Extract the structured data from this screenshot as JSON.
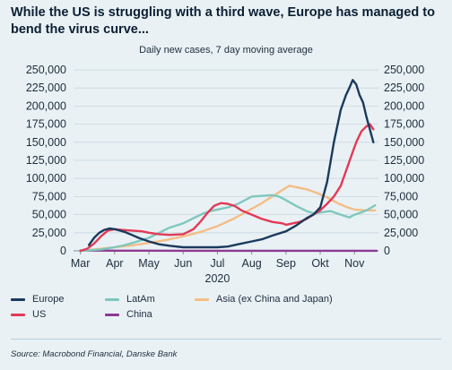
{
  "title": "While the US is struggling with a third wave, Europe has managed to bend the virus curve...",
  "subtitle": "Daily new cases, 7 day moving average",
  "source": "Source: Macrobond Financial, Danske Bank",
  "chart_data": {
    "type": "line",
    "x_unit": "month",
    "x_ticks": [
      "Mar",
      "Apr",
      "May",
      "Jun",
      "Jul",
      "Aug",
      "Sep",
      "Okt",
      "Nov"
    ],
    "x_tick_positions": [
      3.0,
      4.0,
      5.0,
      6.0,
      7.0,
      8.0,
      9.0,
      10.0,
      11.0
    ],
    "xlabel": "2020",
    "xlim": [
      2.8,
      11.7
    ],
    "ylim": [
      0,
      250000
    ],
    "y_ticks": [
      "0",
      "25,000",
      "50,000",
      "75,000",
      "100,000",
      "125,000",
      "150,000",
      "175,000",
      "200,000",
      "225,000",
      "250,000"
    ],
    "y_tick_values": [
      0,
      25000,
      50000,
      75000,
      100000,
      125000,
      150000,
      175000,
      200000,
      225000,
      250000
    ],
    "legend_placement": "bottom",
    "series": [
      {
        "name": "Europe",
        "color": "#1a3a5c",
        "points": [
          [
            3.25,
            8000
          ],
          [
            3.4,
            18000
          ],
          [
            3.55,
            25000
          ],
          [
            3.7,
            29000
          ],
          [
            3.85,
            31000
          ],
          [
            4.0,
            30000
          ],
          [
            4.15,
            28000
          ],
          [
            4.3,
            26000
          ],
          [
            4.5,
            22000
          ],
          [
            4.7,
            18000
          ],
          [
            5.0,
            13000
          ],
          [
            5.3,
            9000
          ],
          [
            5.6,
            7000
          ],
          [
            6.0,
            5000
          ],
          [
            6.5,
            5000
          ],
          [
            7.0,
            5000
          ],
          [
            7.3,
            6000
          ],
          [
            7.6,
            9000
          ],
          [
            8.0,
            13000
          ],
          [
            8.3,
            16000
          ],
          [
            8.6,
            21000
          ],
          [
            9.0,
            27000
          ],
          [
            9.3,
            35000
          ],
          [
            9.6,
            45000
          ],
          [
            9.8,
            50000
          ],
          [
            10.0,
            60000
          ],
          [
            10.2,
            95000
          ],
          [
            10.4,
            150000
          ],
          [
            10.6,
            195000
          ],
          [
            10.75,
            215000
          ],
          [
            10.85,
            225000
          ],
          [
            10.95,
            236000
          ],
          [
            11.05,
            230000
          ],
          [
            11.15,
            215000
          ],
          [
            11.25,
            205000
          ],
          [
            11.35,
            185000
          ],
          [
            11.45,
            168000
          ],
          [
            11.55,
            150000
          ]
        ]
      },
      {
        "name": "LatAm",
        "color": "#7fc8bd",
        "points": [
          [
            3.0,
            0
          ],
          [
            3.3,
            1000
          ],
          [
            3.6,
            2000
          ],
          [
            4.0,
            5000
          ],
          [
            4.3,
            8000
          ],
          [
            4.6,
            12000
          ],
          [
            5.0,
            18000
          ],
          [
            5.3,
            25000
          ],
          [
            5.6,
            32000
          ],
          [
            6.0,
            38000
          ],
          [
            6.3,
            45000
          ],
          [
            6.6,
            52000
          ],
          [
            6.8,
            55000
          ],
          [
            7.0,
            57000
          ],
          [
            7.3,
            60000
          ],
          [
            7.6,
            65000
          ],
          [
            8.0,
            75000
          ],
          [
            8.3,
            76000
          ],
          [
            8.6,
            77000
          ],
          [
            8.8,
            75000
          ],
          [
            9.0,
            70000
          ],
          [
            9.3,
            62000
          ],
          [
            9.6,
            55000
          ],
          [
            9.8,
            52000
          ],
          [
            10.0,
            53000
          ],
          [
            10.3,
            55000
          ],
          [
            10.6,
            50000
          ],
          [
            10.85,
            46000
          ],
          [
            11.0,
            50000
          ],
          [
            11.2,
            53000
          ],
          [
            11.4,
            57000
          ],
          [
            11.6,
            63000
          ]
        ]
      },
      {
        "name": "Asia (ex China and Japan)",
        "color": "#f5bd86",
        "points": [
          [
            3.0,
            0
          ],
          [
            3.4,
            2000
          ],
          [
            3.8,
            4000
          ],
          [
            4.2,
            6000
          ],
          [
            4.6,
            8000
          ],
          [
            5.0,
            11000
          ],
          [
            5.5,
            15000
          ],
          [
            6.0,
            20000
          ],
          [
            6.5,
            26000
          ],
          [
            7.0,
            34000
          ],
          [
            7.5,
            45000
          ],
          [
            8.0,
            58000
          ],
          [
            8.3,
            66000
          ],
          [
            8.6,
            75000
          ],
          [
            8.9,
            84000
          ],
          [
            9.1,
            90000
          ],
          [
            9.3,
            88000
          ],
          [
            9.6,
            85000
          ],
          [
            9.9,
            80000
          ],
          [
            10.2,
            74000
          ],
          [
            10.5,
            66000
          ],
          [
            10.8,
            60000
          ],
          [
            11.0,
            57000
          ],
          [
            11.3,
            56000
          ],
          [
            11.6,
            56000
          ]
        ]
      },
      {
        "name": "US",
        "color": "#e23a55",
        "points": [
          [
            3.0,
            0
          ],
          [
            3.2,
            3000
          ],
          [
            3.4,
            10000
          ],
          [
            3.6,
            20000
          ],
          [
            3.8,
            28000
          ],
          [
            4.0,
            30000
          ],
          [
            4.2,
            29000
          ],
          [
            4.5,
            28000
          ],
          [
            4.8,
            27000
          ],
          [
            5.0,
            25000
          ],
          [
            5.3,
            23000
          ],
          [
            5.6,
            22000
          ],
          [
            6.0,
            23000
          ],
          [
            6.3,
            30000
          ],
          [
            6.5,
            40000
          ],
          [
            6.7,
            52000
          ],
          [
            6.9,
            62000
          ],
          [
            7.1,
            66000
          ],
          [
            7.3,
            65000
          ],
          [
            7.5,
            62000
          ],
          [
            7.7,
            56000
          ],
          [
            8.0,
            50000
          ],
          [
            8.3,
            44000
          ],
          [
            8.6,
            40000
          ],
          [
            8.9,
            38000
          ],
          [
            9.0,
            36000
          ],
          [
            9.2,
            38000
          ],
          [
            9.4,
            40000
          ],
          [
            9.6,
            44000
          ],
          [
            9.8,
            50000
          ],
          [
            10.0,
            56000
          ],
          [
            10.2,
            65000
          ],
          [
            10.4,
            75000
          ],
          [
            10.6,
            90000
          ],
          [
            10.75,
            110000
          ],
          [
            10.9,
            130000
          ],
          [
            11.05,
            150000
          ],
          [
            11.2,
            165000
          ],
          [
            11.35,
            172000
          ],
          [
            11.45,
            175000
          ],
          [
            11.55,
            168000
          ]
        ]
      },
      {
        "name": "China",
        "color": "#8e3a93",
        "points": [
          [
            3.0,
            500
          ],
          [
            4.0,
            300
          ],
          [
            5.0,
            200
          ],
          [
            6.0,
            100
          ],
          [
            7.0,
            100
          ],
          [
            8.0,
            100
          ],
          [
            9.0,
            100
          ],
          [
            10.0,
            100
          ],
          [
            11.0,
            100
          ],
          [
            11.65,
            100
          ]
        ]
      }
    ]
  },
  "legend": [
    {
      "label": "Europe",
      "color": "#1a3a5c"
    },
    {
      "label": "LatAm",
      "color": "#7fc8bd"
    },
    {
      "label": "Asia (ex China and Japan)",
      "color": "#f5bd86"
    },
    {
      "label": "US",
      "color": "#e23a55"
    },
    {
      "label": "China",
      "color": "#8e3a93"
    }
  ]
}
